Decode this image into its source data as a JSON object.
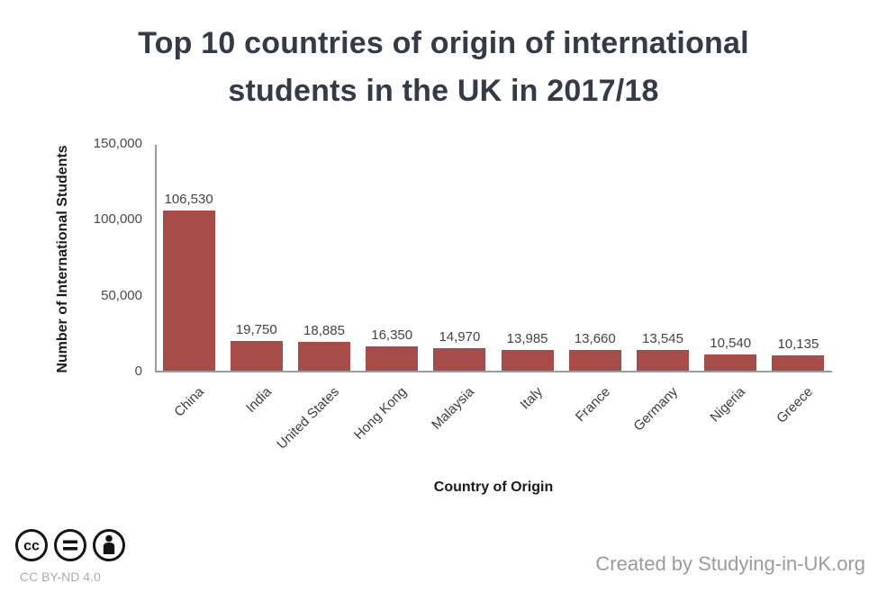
{
  "title": "Top 10 countries of origin of international\nstudents in the UK in 2017/18",
  "chart_data": {
    "type": "bar",
    "title": "Top 10 countries of origin of international students in the UK in 2017/18",
    "categories": [
      "China",
      "India",
      "United States",
      "Hong Kong",
      "Malaysia",
      "Italy",
      "France",
      "Germany",
      "Nigeria",
      "Greece"
    ],
    "values": [
      106530,
      19750,
      18885,
      16350,
      14970,
      13985,
      13660,
      13545,
      10540,
      10135
    ],
    "value_labels": [
      "106,530",
      "19,750",
      "18,885",
      "16,350",
      "14,970",
      "13,985",
      "13,660",
      "13,545",
      "10,540",
      "10,135"
    ],
    "xlabel": "Country of Origin",
    "ylabel": "Number of International Students",
    "ylim": [
      0,
      150000
    ],
    "yticks": [
      {
        "value": 0,
        "label": "0"
      },
      {
        "value": 50000,
        "label": "50,000"
      },
      {
        "value": 100000,
        "label": "100,000"
      },
      {
        "value": 150000,
        "label": "150,000"
      }
    ],
    "grid": false,
    "legend": false,
    "bar_color": "#a64c49"
  },
  "footer": {
    "license_label": "CC BY-ND 4.0",
    "license_icons": [
      "cc-icon",
      "equals-icon",
      "person-icon"
    ],
    "credit": "Created by Studying-in-UK.org"
  },
  "colors": {
    "bar": "#a64c49",
    "title_text": "#343a48",
    "axis_line": "#9c9c9c",
    "tick_text": "#4a4a4a",
    "credit_text": "#9b9b9b",
    "license_icon": "#141414"
  }
}
